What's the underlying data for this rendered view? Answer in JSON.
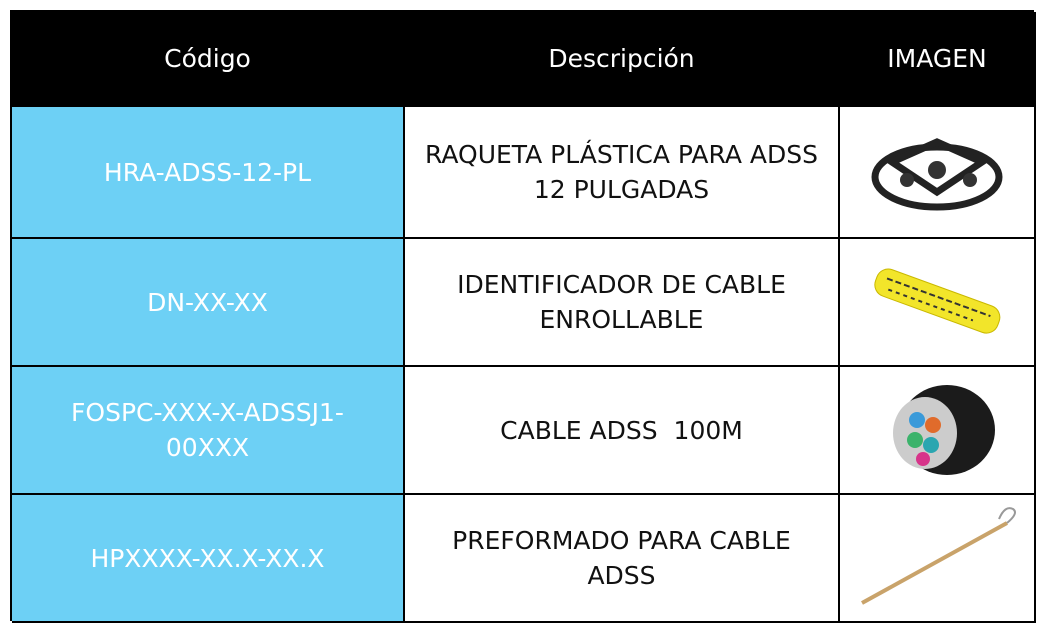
{
  "table": {
    "header": [
      "Código",
      "Descripción",
      "IMAGEN"
    ],
    "rows": [
      [
        "HRA-ADSS-12-PL",
        "RAQUETA PLÁSTICA PARA ADSS 12 PULGADAS"
      ],
      [
        "DN-XX-XX",
        "IDENTIFICADOR DE CABLE ENROLLABLE"
      ],
      [
        "FOSPC-XXX-X-ADSSJ1-00XXX",
        "CABLE ADSS  100M"
      ],
      [
        "HPXXXX-XX.X-XX.X",
        "PREFORMADO PARA CABLE ADSS"
      ]
    ]
  }
}
